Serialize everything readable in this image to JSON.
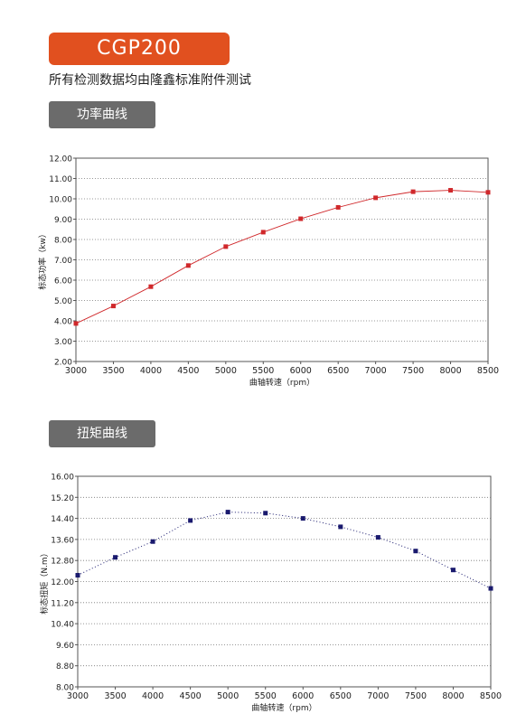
{
  "header": {
    "model": "CGP200",
    "note": "所有检测数据均由隆鑫标准附件测试"
  },
  "sections": {
    "power": "功率曲线",
    "torque": "扭矩曲线"
  },
  "colors": {
    "accent": "#e1501f",
    "section_bg": "#6b6b6b",
    "power_series": "#d0282b",
    "torque_series": "#1a1a6e"
  },
  "chart_data": [
    {
      "type": "line",
      "x": [
        3000,
        3500,
        4000,
        4500,
        5000,
        5500,
        6000,
        6500,
        7000,
        7500,
        8000,
        8500
      ],
      "series": [
        {
          "values": [
            3.87,
            4.73,
            5.68,
            6.72,
            7.65,
            8.36,
            9.02,
            9.58,
            10.05,
            10.35,
            10.42,
            10.32
          ]
        }
      ],
      "xlabel": "曲轴转速（rpm）",
      "ylabel": "标态功率（kw）",
      "ylim": [
        2.0,
        12.0
      ],
      "yticks": [
        "2.00",
        "3.00",
        "4.00",
        "5.00",
        "6.00",
        "7.00",
        "8.00",
        "9.00",
        "10.00",
        "11.00",
        "12.00"
      ],
      "xticks": [
        "3000",
        "3500",
        "4000",
        "4500",
        "5000",
        "5500",
        "6000",
        "6500",
        "7000",
        "7500",
        "8000",
        "8500"
      ],
      "grid": true,
      "line_style": "solid"
    },
    {
      "type": "line",
      "x": [
        3000,
        3500,
        4000,
        4500,
        5000,
        5500,
        6000,
        6500,
        7000,
        7500,
        8000,
        8500
      ],
      "series": [
        {
          "values": [
            12.24,
            12.92,
            13.52,
            14.32,
            14.64,
            14.6,
            14.4,
            14.08,
            13.68,
            13.16,
            12.44,
            11.74
          ]
        }
      ],
      "xlabel": "曲轴转速（rpm）",
      "ylabel": "标态扭矩（N.m）",
      "ylim": [
        8.0,
        16.0
      ],
      "yticks": [
        "8.00",
        "8.80",
        "9.60",
        "10.40",
        "11.20",
        "12.00",
        "12.80",
        "13.60",
        "14.40",
        "15.20",
        "16.00"
      ],
      "xticks": [
        "3000",
        "3500",
        "4000",
        "4500",
        "5000",
        "5500",
        "6000",
        "6500",
        "7000",
        "7500",
        "8000",
        "8500"
      ],
      "grid": true,
      "line_style": "dotted"
    }
  ]
}
